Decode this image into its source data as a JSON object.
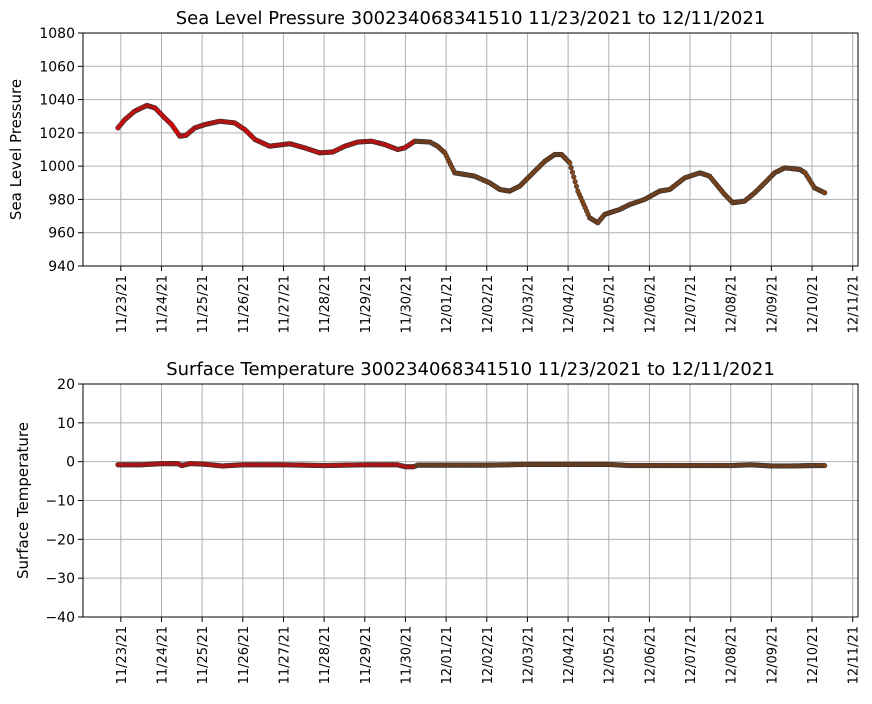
{
  "chart_data": [
    {
      "type": "scatter",
      "title": "Sea Level Pressure 300234068341510  11/23/2021 to 12/11/2021",
      "xlabel": "",
      "ylabel": "Sea Level Pressure",
      "ylim": [
        940,
        1080
      ],
      "yticks": [
        940,
        960,
        980,
        1000,
        1020,
        1040,
        1060,
        1080
      ],
      "xlim_days_from_11_23": [
        -0.93,
        18.13
      ],
      "xtick_labels": [
        "11/23/21",
        "11/24/21",
        "11/25/21",
        "11/26/21",
        "11/27/21",
        "11/28/21",
        "11/29/21",
        "11/30/21",
        "12/01/21",
        "12/02/21",
        "12/03/21",
        "12/04/21",
        "12/05/21",
        "12/06/21",
        "12/07/21",
        "12/08/21",
        "12/09/21",
        "12/10/21",
        "12/11/21"
      ],
      "grid": true,
      "color_split_day": 7.25,
      "colors": {
        "early": "#ff0000",
        "late": "#8b4513",
        "edge": "#333333"
      },
      "series_days": [
        -0.07,
        0.1,
        0.34,
        0.64,
        0.84,
        1.08,
        1.25,
        1.45,
        1.6,
        1.82,
        2.07,
        2.43,
        2.8,
        3.05,
        3.3,
        3.66,
        4.16,
        4.52,
        4.89,
        5.21,
        5.51,
        5.83,
        6.17,
        6.49,
        6.81,
        6.98,
        7.23,
        7.6,
        7.79,
        7.97,
        8.21,
        8.46,
        8.7,
        9.07,
        9.32,
        9.56,
        9.81,
        10.18,
        10.43,
        10.67,
        10.84,
        11.04,
        11.24,
        11.53,
        11.73,
        11.9,
        12.27,
        12.52,
        12.88,
        13.25,
        13.5,
        13.87,
        14.24,
        14.48,
        14.85,
        15.05,
        15.34,
        15.59,
        15.84,
        16.08,
        16.33,
        16.7,
        16.83,
        17.06,
        17.31
      ],
      "series_values": [
        1023,
        1028,
        1033,
        1036.5,
        1035,
        1029,
        1025,
        1018,
        1018.5,
        1023,
        1025,
        1027,
        1026,
        1022,
        1016,
        1012,
        1013.5,
        1011,
        1008,
        1008.5,
        1012,
        1014.5,
        1015,
        1013,
        1010,
        1011,
        1015,
        1014.5,
        1012,
        1008,
        996,
        995,
        994,
        990,
        986,
        985,
        988,
        997,
        1003,
        1007,
        1007,
        1002,
        985,
        969,
        966,
        971,
        974,
        977,
        980,
        985,
        986,
        993,
        996,
        994,
        983,
        978,
        979,
        984,
        990,
        996,
        999,
        998,
        996,
        987,
        984
      ]
    },
    {
      "type": "scatter",
      "title": "Surface Temperature 300234068341510  11/23/2021 to 12/11/2021",
      "xlabel": "",
      "ylabel": "Surface Temperature",
      "ylim": [
        -40,
        20
      ],
      "yticks": [
        -40,
        -30,
        -20,
        -10,
        0,
        10,
        20
      ],
      "ytick_labels": [
        "−40",
        "−30",
        "−20",
        "−10",
        "0",
        "10",
        "20"
      ],
      "xlim_days_from_11_23": [
        -0.93,
        18.13
      ],
      "xtick_labels": [
        "11/23/21",
        "11/24/21",
        "11/25/21",
        "11/26/21",
        "11/27/21",
        "11/28/21",
        "11/29/21",
        "11/30/21",
        "12/01/21",
        "12/02/21",
        "12/03/21",
        "12/04/21",
        "12/05/21",
        "12/06/21",
        "12/07/21",
        "12/08/21",
        "12/09/21",
        "12/10/21",
        "12/11/21"
      ],
      "grid": true,
      "color_split_day": 7.25,
      "colors": {
        "early": "#ff0000",
        "late": "#8b4513",
        "edge": "#333333"
      },
      "series_days": [
        -0.07,
        0.5,
        1.0,
        1.4,
        1.5,
        1.7,
        2.0,
        2.5,
        3.0,
        4.0,
        5.0,
        6.0,
        6.8,
        7.0,
        7.2,
        7.3,
        8.0,
        9.0,
        10.0,
        11.0,
        12.0,
        12.5,
        13.0,
        14.0,
        15.0,
        15.5,
        16.0,
        16.5,
        17.0,
        17.31
      ],
      "series_values": [
        -0.8,
        -0.8,
        -0.5,
        -0.5,
        -1.0,
        -0.5,
        -0.6,
        -1.1,
        -0.8,
        -0.8,
        -1.0,
        -0.8,
        -0.8,
        -1.3,
        -1.3,
        -0.9,
        -0.9,
        -0.9,
        -0.7,
        -0.7,
        -0.7,
        -1.0,
        -1.0,
        -1.0,
        -1.0,
        -0.8,
        -1.1,
        -1.1,
        -1.0,
        -1.0
      ]
    }
  ]
}
